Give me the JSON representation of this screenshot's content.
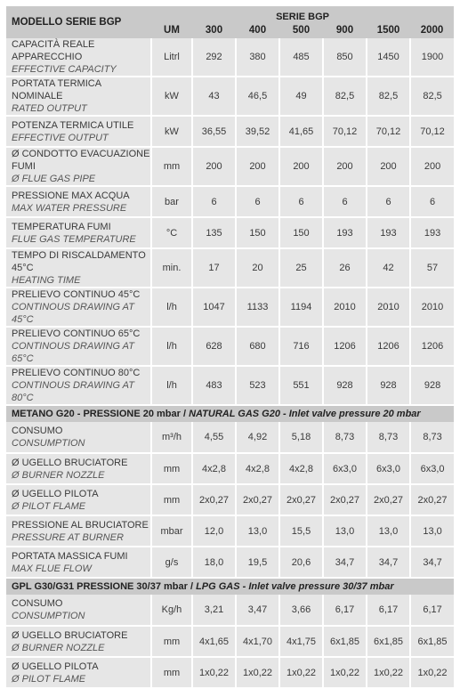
{
  "header": {
    "model_label": "MODELLO SERIE BGP",
    "serie_label": "SERIE BGP",
    "um_label": "UM",
    "columns": [
      "300",
      "400",
      "500",
      "900",
      "1500",
      "2000"
    ]
  },
  "groups": [
    {
      "section": null,
      "rows": [
        {
          "it": "CAPACITÀ REALE APPARECCHIO",
          "en": "EFFECTIVE CAPACITY",
          "unit": "Litrl",
          "values": [
            "292",
            "380",
            "485",
            "850",
            "1450",
            "1900"
          ]
        },
        {
          "it": "PORTATA TERMICA NOMINALE",
          "en": "RATED OUTPUT",
          "unit": "kW",
          "values": [
            "43",
            "46,5",
            "49",
            "82,5",
            "82,5",
            "82,5"
          ]
        },
        {
          "it": "POTENZA TERMICA UTILE",
          "en": "EFFECTIVE OUTPUT",
          "unit": "kW",
          "values": [
            "36,55",
            "39,52",
            "41,65",
            "70,12",
            "70,12",
            "70,12"
          ]
        },
        {
          "it": "Ø CONDOTTO EVACUAZIONE FUMI",
          "en": "Ø FLUE GAS PIPE",
          "unit": "mm",
          "values": [
            "200",
            "200",
            "200",
            "200",
            "200",
            "200"
          ]
        },
        {
          "it": "PRESSIONE MAX ACQUA",
          "en": "MAX WATER PRESSURE",
          "unit": "bar",
          "values": [
            "6",
            "6",
            "6",
            "6",
            "6",
            "6"
          ]
        },
        {
          "it": "TEMPERATURA FUMI",
          "en": "FLUE GAS TEMPERATURE",
          "unit": "°C",
          "values": [
            "135",
            "150",
            "150",
            "193",
            "193",
            "193"
          ]
        },
        {
          "it": "TEMPO DI RISCALDAMENTO 45°C",
          "en": "HEATING TIME",
          "unit": "min.",
          "values": [
            "17",
            "20",
            "25",
            "26",
            "42",
            "57"
          ]
        },
        {
          "it": "PRELIEVO CONTINUO 45°C",
          "en": "CONTINOUS DRAWING AT 45°C",
          "unit": "l/h",
          "values": [
            "1047",
            "1133",
            "1194",
            "2010",
            "2010",
            "2010"
          ]
        },
        {
          "it": "PRELIEVO CONTINUO 65°C",
          "en": "CONTINOUS DRAWING AT 65°C",
          "unit": "l/h",
          "values": [
            "628",
            "680",
            "716",
            "1206",
            "1206",
            "1206"
          ]
        },
        {
          "it": "PRELIEVO CONTINUO 80°C",
          "en": "CONTINOUS DRAWING AT 80°C",
          "unit": "l/h",
          "values": [
            "483",
            "523",
            "551",
            "928",
            "928",
            "928"
          ]
        }
      ]
    },
    {
      "section": {
        "bold": "METANO G20 - PRESSIONE 20 mbar / ",
        "italic": "NATURAL GAS G20 - Inlet valve pressure 20 mbar"
      },
      "rows": [
        {
          "it": "CONSUMO",
          "en": "CONSUMPTION",
          "unit": "m³/h",
          "values": [
            "4,55",
            "4,92",
            "5,18",
            "8,73",
            "8,73",
            "8,73"
          ]
        },
        {
          "it": "Ø UGELLO BRUCIATORE",
          "en": "Ø BURNER NOZZLE",
          "unit": "mm",
          "values": [
            "4x2,8",
            "4x2,8",
            "4x2,8",
            "6x3,0",
            "6x3,0",
            "6x3,0"
          ]
        },
        {
          "it": "Ø UGELLO PILOTA",
          "en": "Ø PILOT FLAME",
          "unit": "mm",
          "values": [
            "2x0,27",
            "2x0,27",
            "2x0,27",
            "2x0,27",
            "2x0,27",
            "2x0,27"
          ]
        },
        {
          "it": "PRESSIONE AL BRUCIATORE",
          "en": "PRESSURE AT BURNER",
          "unit": "mbar",
          "values": [
            "12,0",
            "13,0",
            "15,5",
            "13,0",
            "13,0",
            "13,0"
          ]
        },
        {
          "it": "PORTATA MASSICA FUMI",
          "en": "MAX FLUE FLOW",
          "unit": "g/s",
          "values": [
            "18,0",
            "19,5",
            "20,6",
            "34,7",
            "34,7",
            "34,7"
          ]
        }
      ]
    },
    {
      "section": {
        "bold": "GPL G30/G31 PRESSIONE 30/37 mbar / ",
        "italic": "LPG GAS - Inlet valve pressure 30/37 mbar"
      },
      "rows": [
        {
          "it": "CONSUMO",
          "en": "CONSUMPTION",
          "unit": "Kg/h",
          "values": [
            "3,21",
            "3,47",
            "3,66",
            "6,17",
            "6,17",
            "6,17"
          ]
        },
        {
          "it": "Ø UGELLO BRUCIATORE",
          "en": "Ø BURNER NOZZLE",
          "unit": "mm",
          "values": [
            "4x1,65",
            "4x1,70",
            "4x1,75",
            "6x1,85",
            "6x1,85",
            "6x1,85"
          ]
        },
        {
          "it": "Ø UGELLO PILOTA",
          "en": "Ø PILOT FLAME",
          "unit": "mm",
          "values": [
            "1x0,22",
            "1x0,22",
            "1x0,22",
            "1x0,22",
            "1x0,22",
            "1x0,22"
          ]
        }
      ]
    }
  ]
}
